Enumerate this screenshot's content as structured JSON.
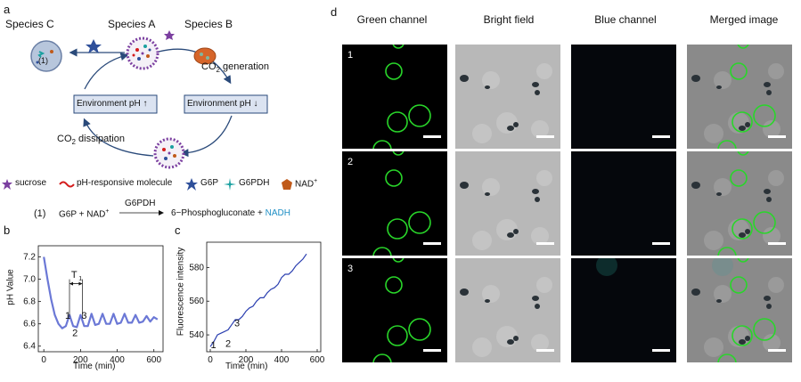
{
  "panel_letters": {
    "a": "a",
    "b": "b",
    "c": "c",
    "d": "d"
  },
  "panel_a": {
    "species_a": "Species A",
    "species_b": "Species B",
    "species_c": "Species C",
    "co2_generation": "CO",
    "co2_generation_sub": "2",
    "co2_generation_suffix": " generation",
    "co2_dissipation": "CO",
    "co2_dissipation_sub": "2",
    "co2_dissipation_suffix": " dissipation",
    "env_ph_up": "Environment pH",
    "env_ph_down": "Environment pH",
    "up_arrow": "↑",
    "down_arrow": "↓",
    "marker_1": "(1)",
    "legend": {
      "sucrose": "sucrose",
      "ph_molecule": "pH-responsive molecule",
      "g6p": "G6P",
      "g6pdh": "G6PDH",
      "nad": "NAD",
      "nad_sup": "+"
    },
    "equation": {
      "number": "(1)",
      "lhs": "G6P + NAD",
      "lhs_sup": "+",
      "enzyme": "G6PDH",
      "rhs": "6−Phosphogluconate + ",
      "product": "NADH"
    },
    "colors": {
      "product": "#1f8fc5",
      "circle": "#2a4a7a",
      "sucrose": "#7b3fa0",
      "g6p": "#2e4f9a",
      "g6pdh": "#1aa0a0",
      "nad": "#c05a1a",
      "ph": "#d41c1c"
    }
  },
  "panel_b": {
    "ylabel": "pH Value",
    "xlabel": "Time (min)",
    "yticks": [
      "7.2",
      "7.0",
      "6.8",
      "6.6",
      "6.4"
    ],
    "xticks": [
      "0",
      "200",
      "400",
      "600"
    ],
    "annot_T": "T",
    "annot_T_sub": "1",
    "annot_1": "1",
    "annot_2": "2",
    "annot_3": "3"
  },
  "panel_c": {
    "ylabel": "Fluorescence intensity",
    "xlabel": "Time (min)",
    "yticks": [
      "580",
      "560",
      "540"
    ],
    "xticks": [
      "0",
      "200",
      "400",
      "600"
    ],
    "annot_1": "1",
    "annot_2": "2",
    "annot_3": "3"
  },
  "panel_d": {
    "headers": [
      "Green channel",
      "Bright field",
      "Blue channel",
      "Merged image"
    ],
    "row_labels": [
      "1",
      "2",
      "3"
    ]
  },
  "chart_data": [
    {
      "type": "line",
      "panel": "b",
      "xlabel": "Time (min)",
      "ylabel": "pH Value",
      "xlim": [
        -30,
        650
      ],
      "ylim": [
        6.35,
        7.3
      ],
      "series": [
        {
          "x": [
            0,
            20,
            40,
            60,
            80,
            100,
            120,
            140,
            160,
            180,
            200,
            220,
            240,
            260,
            280,
            300,
            320,
            340,
            360,
            380,
            400,
            420,
            440,
            460,
            480,
            500,
            520,
            540,
            560,
            580,
            600,
            620
          ],
          "values": [
            7.2,
            7.0,
            6.82,
            6.68,
            6.6,
            6.56,
            6.58,
            6.68,
            6.58,
            6.57,
            6.68,
            6.58,
            6.58,
            6.69,
            6.59,
            6.6,
            6.69,
            6.6,
            6.6,
            6.69,
            6.6,
            6.61,
            6.69,
            6.61,
            6.61,
            6.68,
            6.61,
            6.62,
            6.67,
            6.62,
            6.66,
            6.64
          ]
        }
      ]
    },
    {
      "type": "line",
      "panel": "c",
      "xlabel": "Time (min)",
      "ylabel": "Fluorescence intensity",
      "xlim": [
        -20,
        620
      ],
      "ylim": [
        530,
        595
      ],
      "series": [
        {
          "x": [
            0,
            20,
            40,
            60,
            80,
            100,
            120,
            140,
            160,
            180,
            200,
            220,
            240,
            260,
            280,
            300,
            320,
            340,
            360,
            380,
            400,
            420,
            440,
            460,
            480,
            500,
            520,
            540
          ],
          "values": [
            533,
            536,
            540,
            541,
            542,
            543,
            546,
            549,
            549,
            551,
            554,
            556,
            557,
            560,
            562,
            562,
            565,
            567,
            568,
            570,
            574,
            576,
            576,
            578,
            581,
            583,
            585,
            588
          ]
        }
      ]
    }
  ]
}
